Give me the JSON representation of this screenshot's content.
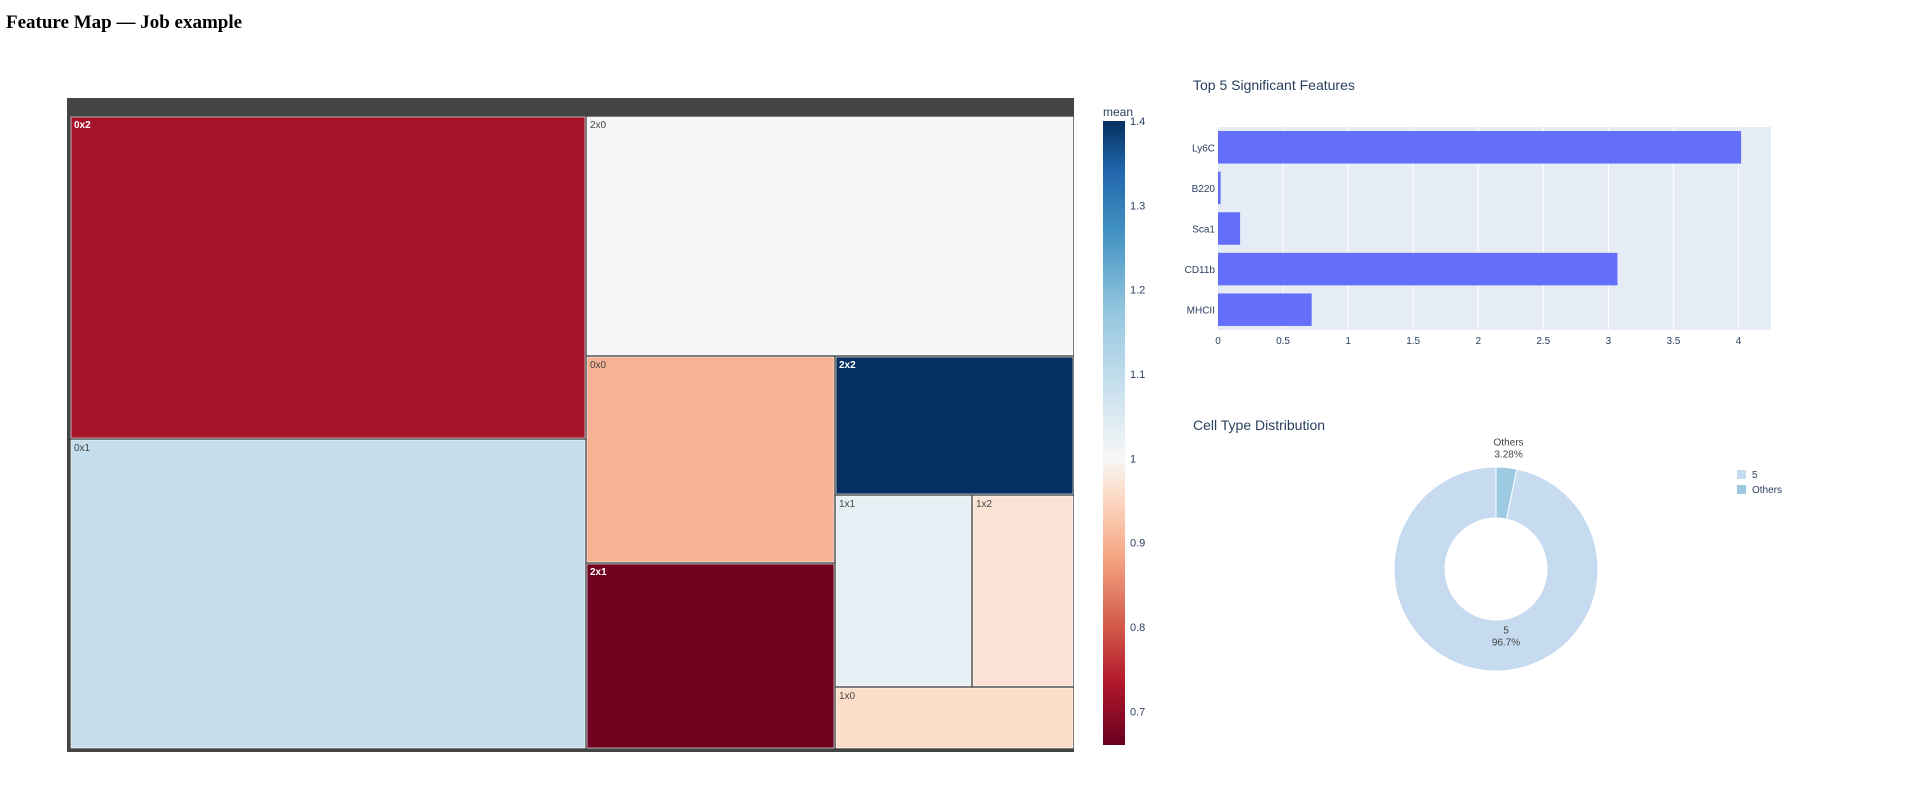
{
  "page": {
    "title": "Feature Map — Job example"
  },
  "colors": {
    "panel_bg": "#444444",
    "bar_fill": "#636efa",
    "plot_bg": "#e5ecf6",
    "axis_text": "#2a3f5f"
  },
  "chart_data": [
    {
      "type": "treemap",
      "colorbar": {
        "title": "mean",
        "range": [
          0.66,
          1.4
        ],
        "ticks": [
          0.7,
          0.8,
          0.9,
          1,
          1.1,
          1.2,
          1.3,
          1.4
        ],
        "tick_labels": [
          "0.7",
          "0.8",
          "0.9",
          "1",
          "1.1",
          "1.2",
          "1.3",
          "1.4"
        ],
        "colorscale": "RdBu"
      },
      "tiles": [
        {
          "label": "0x2",
          "mean": 0.72
        },
        {
          "label": "0x1",
          "mean": 1.09
        },
        {
          "label": "2x0",
          "mean": 1.005
        },
        {
          "label": "0x0",
          "mean": 0.9
        },
        {
          "label": "2x2",
          "mean": 1.4
        },
        {
          "label": "2x1",
          "mean": 0.67
        },
        {
          "label": "1x1",
          "mean": 1.03
        },
        {
          "label": "1x2",
          "mean": 0.97
        },
        {
          "label": "1x0",
          "mean": 0.96
        }
      ]
    },
    {
      "type": "bar",
      "orientation": "horizontal",
      "title": "Top 5 Significant Features",
      "categories": [
        "Ly6C",
        "B220",
        "Sca1",
        "CD11b",
        "MHCII"
      ],
      "values": [
        4.02,
        0.02,
        0.17,
        3.07,
        0.72
      ],
      "xlim": [
        0,
        4.25
      ],
      "xticks": [
        0,
        0.5,
        1,
        1.5,
        2,
        2.5,
        3,
        3.5,
        4
      ],
      "xtick_labels": [
        "0",
        "0.5",
        "1",
        "1.5",
        "2",
        "2.5",
        "3",
        "3.5",
        "4"
      ],
      "grid": true
    },
    {
      "type": "pie",
      "hole": 0.5,
      "title": "Cell Type Distribution",
      "slices": [
        {
          "label": "5",
          "value": 96.7,
          "percent_label": "96.7%",
          "color": "#c6dbef"
        },
        {
          "label": "Others",
          "value": 3.28,
          "percent_label": "3.28%",
          "color": "#9ecae1"
        }
      ],
      "legend": {
        "placement": "right",
        "entries": [
          "5",
          "Others"
        ]
      }
    }
  ]
}
